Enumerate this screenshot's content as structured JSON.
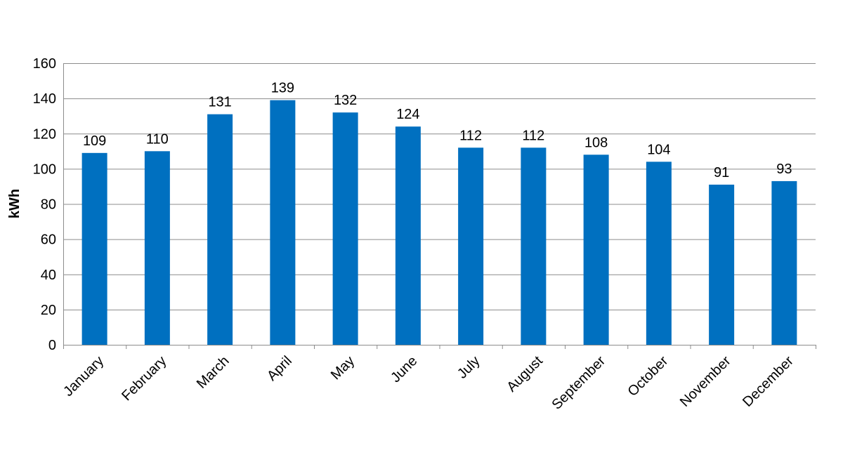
{
  "chart_data": {
    "type": "bar",
    "categories": [
      "January",
      "February",
      "March",
      "April",
      "May",
      "June",
      "July",
      "August",
      "September",
      "October",
      "November",
      "December"
    ],
    "values": [
      109,
      110,
      131,
      139,
      132,
      124,
      112,
      112,
      108,
      104,
      91,
      93
    ],
    "ylabel": "kWh",
    "ylim": [
      0,
      160
    ],
    "yticks": [
      0,
      20,
      40,
      60,
      80,
      100,
      120,
      140,
      160
    ],
    "grid": true,
    "legend": "none",
    "bar_color": "#0070C0",
    "grid_color": "#8c8c8c"
  }
}
